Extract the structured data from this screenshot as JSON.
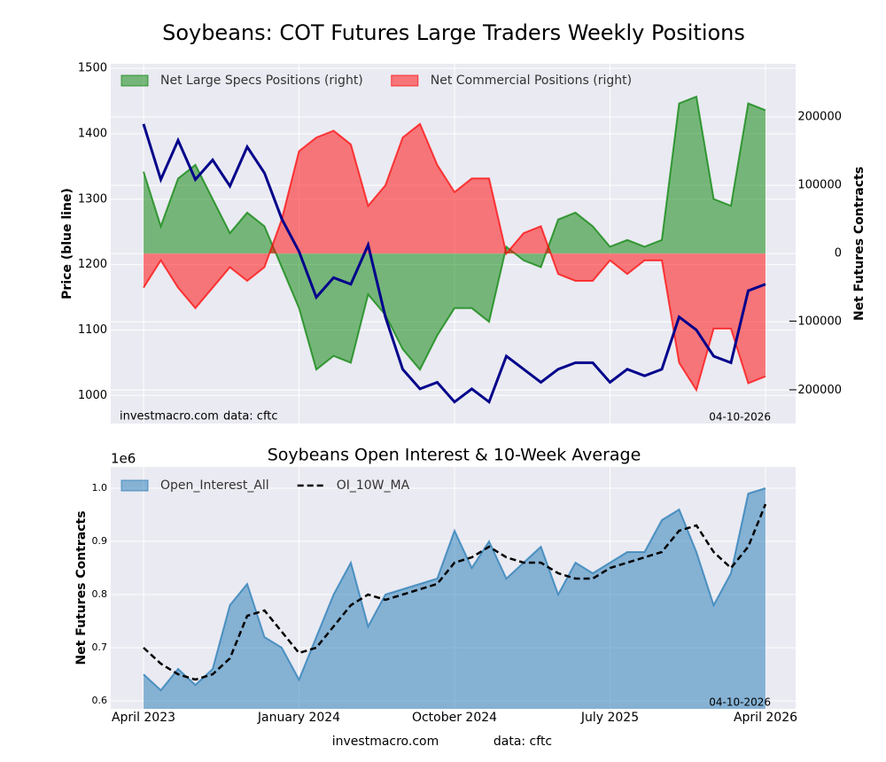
{
  "title": "Soybeans: COT Futures Large Traders Weekly Positions",
  "chart_data": [
    {
      "type": "line-area",
      "y_label": "Price (blue line)",
      "y2_label": "Net Futures Contracts",
      "notes": {
        "site": "investmacro.com",
        "source": "data: cftc",
        "date": "04-10-2026"
      },
      "x": [
        "2023-04",
        "2023-05",
        "2023-06",
        "2023-07",
        "2023-08",
        "2023-09",
        "2023-10",
        "2023-11",
        "2023-12",
        "2024-01",
        "2024-02",
        "2024-03",
        "2024-04",
        "2024-05",
        "2024-06",
        "2024-07",
        "2024-08",
        "2024-09",
        "2024-10",
        "2024-11",
        "2024-12",
        "2025-01",
        "2025-02",
        "2025-03",
        "2025-04",
        "2025-05",
        "2025-06",
        "2025-07",
        "2025-08",
        "2025-09",
        "2025-10",
        "2025-11",
        "2025-12",
        "2026-01",
        "2026-02",
        "2026-03",
        "2026-04"
      ],
      "ylim": [
        957,
        1507
      ],
      "yticks": [
        1000,
        1100,
        1200,
        1300,
        1400,
        1500
      ],
      "y2lim": [
        -249000,
        278000
      ],
      "y2ticks": [
        {
          "value": -200000,
          "label": "−200000"
        },
        {
          "value": -100000,
          "label": "−100000"
        },
        0,
        100000,
        200000
      ],
      "grid": true,
      "legend": "upper left",
      "series": [
        {
          "type": "line",
          "axis": "y",
          "color": "#00008b",
          "values": [
            1415,
            1330,
            1390,
            1330,
            1360,
            1320,
            1380,
            1340,
            1270,
            1220,
            1150,
            1180,
            1170,
            1230,
            1120,
            1040,
            1010,
            1020,
            990,
            1010,
            990,
            1060,
            1040,
            1020,
            1040,
            1050,
            1050,
            1020,
            1040,
            1030,
            1040,
            1120,
            1100,
            1060,
            1050,
            1160,
            1170
          ]
        },
        {
          "type": "area",
          "axis": "y2",
          "name": "Net Large Specs Positions (right)",
          "color": "green",
          "values": [
            120000,
            40000,
            110000,
            130000,
            80000,
            30000,
            60000,
            40000,
            -20000,
            -80000,
            -170000,
            -150000,
            -160000,
            -60000,
            -90000,
            -140000,
            -170000,
            -120000,
            -80000,
            -80000,
            -100000,
            10000,
            -10000,
            -20000,
            50000,
            60000,
            40000,
            10000,
            20000,
            10000,
            20000,
            220000,
            230000,
            80000,
            70000,
            220000,
            210000
          ]
        },
        {
          "type": "area",
          "axis": "y2",
          "name": "Net Commercial Positions (right)",
          "color": "red",
          "values": [
            -50000,
            -10000,
            -50000,
            -80000,
            -50000,
            -20000,
            -40000,
            -20000,
            50000,
            150000,
            170000,
            180000,
            160000,
            70000,
            100000,
            170000,
            190000,
            130000,
            90000,
            110000,
            110000,
            0,
            30000,
            40000,
            -30000,
            -40000,
            -40000,
            -10000,
            -30000,
            -10000,
            -10000,
            -160000,
            -200000,
            -110000,
            -110000,
            -190000,
            -180000
          ]
        }
      ]
    },
    {
      "type": "line-area",
      "title": "Soybeans Open Interest & 10-Week Average",
      "y_label": "Net Futures Contracts",
      "y_offset_label": "1e6",
      "notes": {
        "date": "04-10-2026"
      },
      "x": [
        "2023-04",
        "2023-05",
        "2023-06",
        "2023-07",
        "2023-08",
        "2023-09",
        "2023-10",
        "2023-11",
        "2023-12",
        "2024-01",
        "2024-02",
        "2024-03",
        "2024-04",
        "2024-05",
        "2024-06",
        "2024-07",
        "2024-08",
        "2024-09",
        "2024-10",
        "2024-11",
        "2024-12",
        "2025-01",
        "2025-02",
        "2025-03",
        "2025-04",
        "2025-05",
        "2025-06",
        "2025-07",
        "2025-08",
        "2025-09",
        "2025-10",
        "2025-11",
        "2025-12",
        "2026-01",
        "2026-02",
        "2026-03",
        "2026-04"
      ],
      "xticks": [
        {
          "value": "2023-04",
          "label": "April 2023"
        },
        {
          "value": "2024-01",
          "label": "January 2024"
        },
        {
          "value": "2024-10",
          "label": "October 2024"
        },
        {
          "value": "2025-07",
          "label": "July 2025"
        },
        {
          "value": "2026-04",
          "label": "April 2026"
        }
      ],
      "ylim": [
        0.585,
        1.04
      ],
      "yticks": [
        0.6,
        0.7,
        0.8,
        0.9,
        {
          "value": 1,
          "label": "1.0"
        }
      ],
      "grid": true,
      "legend": "upper left",
      "series": [
        {
          "type": "area",
          "axis": "y",
          "name": "Open_Interest_All",
          "color": "#1f77b4",
          "values": [
            0.65,
            0.62,
            0.66,
            0.63,
            0.66,
            0.78,
            0.82,
            0.72,
            0.7,
            0.64,
            0.72,
            0.8,
            0.86,
            0.74,
            0.8,
            0.81,
            0.82,
            0.83,
            0.92,
            0.85,
            0.9,
            0.83,
            0.86,
            0.89,
            0.8,
            0.86,
            0.84,
            0.86,
            0.88,
            0.88,
            0.94,
            0.96,
            0.88,
            0.78,
            0.84,
            0.99,
            1.0
          ]
        },
        {
          "type": "line",
          "axis": "y",
          "name": "OI_10W_MA",
          "color": "#000000",
          "dash": true,
          "values": [
            0.7,
            0.67,
            0.65,
            0.64,
            0.65,
            0.68,
            0.76,
            0.77,
            0.73,
            0.69,
            0.7,
            0.74,
            0.78,
            0.8,
            0.79,
            0.8,
            0.81,
            0.82,
            0.86,
            0.87,
            0.89,
            0.87,
            0.86,
            0.86,
            0.84,
            0.83,
            0.83,
            0.85,
            0.86,
            0.87,
            0.88,
            0.92,
            0.93,
            0.88,
            0.85,
            0.89,
            0.97
          ]
        }
      ]
    }
  ],
  "footer": {
    "site": "investmacro.com",
    "source": "data: cftc"
  }
}
